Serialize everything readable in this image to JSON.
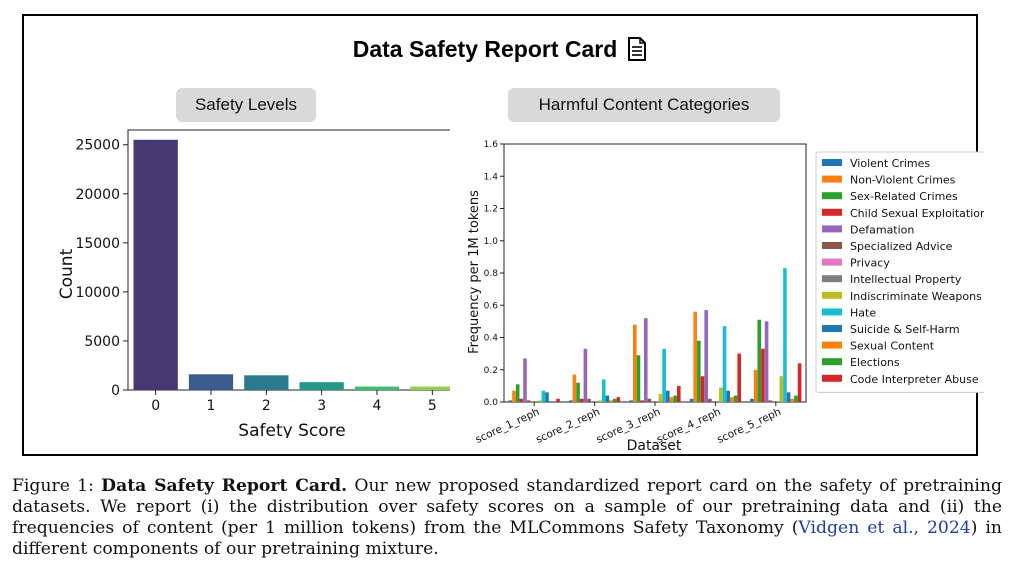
{
  "card": {
    "title": "Data Safety Report Card",
    "icon": "document-icon"
  },
  "left_panel": {
    "label": "Safety Levels"
  },
  "right_panel": {
    "label": "Harmful Content Categories"
  },
  "chart_data": [
    {
      "type": "bar",
      "title": "Safety Levels",
      "xlabel": "Safety Score",
      "ylabel": "Count",
      "categories": [
        "0",
        "1",
        "2",
        "3",
        "4",
        "5"
      ],
      "values": [
        25500,
        1600,
        1500,
        800,
        350,
        350
      ],
      "ylim": [
        0,
        26500
      ],
      "yticks": [
        "0",
        "5000",
        "10000",
        "15000",
        "20000",
        "25000"
      ],
      "colors": [
        "#463872",
        "#3a5b8c",
        "#2b7a8c",
        "#25988a",
        "#3fbc73",
        "#8fd14f"
      ]
    },
    {
      "type": "bar",
      "title": "Harmful Content Categories",
      "xlabel": "Dataset",
      "ylabel": "Frequency per 1M tokens",
      "categories": [
        "score_1_reph",
        "score_2_reph",
        "score_3_reph",
        "score_4_reph",
        "score_5_reph"
      ],
      "ylim": [
        0,
        1.6
      ],
      "yticks": [
        "0.0",
        "0.2",
        "0.4",
        "0.6",
        "0.8",
        "1.0",
        "1.2",
        "1.4",
        "1.6"
      ],
      "legend_position": "right",
      "series": [
        {
          "name": "Violent Crimes",
          "color": "#1f77b4",
          "values": [
            0.01,
            0.01,
            0.01,
            0.02,
            0.02
          ]
        },
        {
          "name": "Non-Violent Crimes",
          "color": "#ff7f0e",
          "values": [
            0.07,
            0.17,
            0.48,
            0.56,
            0.2
          ]
        },
        {
          "name": "Sex-Related Crimes",
          "color": "#2ca02c",
          "values": [
            0.11,
            0.12,
            0.29,
            0.38,
            0.51
          ]
        },
        {
          "name": "Child Sexual Exploitation",
          "color": "#d62728",
          "values": [
            0.02,
            0.02,
            0.01,
            0.16,
            0.33
          ]
        },
        {
          "name": "Defamation",
          "color": "#9467bd",
          "values": [
            0.27,
            0.33,
            0.52,
            0.57,
            0.5
          ]
        },
        {
          "name": "Specialized Advice",
          "color": "#8c564b",
          "values": [
            0.01,
            0.02,
            0.02,
            0.02,
            0.01
          ]
        },
        {
          "name": "Privacy",
          "color": "#e377c2",
          "values": [
            0.0,
            0.0,
            0.0,
            0.0,
            0.0
          ]
        },
        {
          "name": "Intellectual Property",
          "color": "#7f7f7f",
          "values": [
            0.0,
            0.0,
            0.0,
            0.0,
            0.0
          ]
        },
        {
          "name": "Indiscriminate Weapons",
          "color": "#bcbd22",
          "values": [
            0.01,
            0.01,
            0.05,
            0.09,
            0.16
          ]
        },
        {
          "name": "Hate",
          "color": "#17becf",
          "values": [
            0.07,
            0.14,
            0.33,
            0.47,
            0.83
          ]
        },
        {
          "name": "Suicide & Self-Harm",
          "color": "#1f77b4",
          "values": [
            0.06,
            0.04,
            0.07,
            0.07,
            0.06
          ]
        },
        {
          "name": "Sexual Content",
          "color": "#ff7f0e",
          "values": [
            0.0,
            0.01,
            0.03,
            0.03,
            0.02
          ]
        },
        {
          "name": "Elections",
          "color": "#2ca02c",
          "values": [
            0.0,
            0.02,
            0.04,
            0.04,
            0.04
          ]
        },
        {
          "name": "Code Interpreter Abuse",
          "color": "#d62728",
          "values": [
            0.02,
            0.03,
            0.1,
            0.3,
            0.24
          ]
        }
      ]
    }
  ],
  "caption": {
    "label": "Figure 1:",
    "bold": "Data Safety Report Card.",
    "text1": "Our new proposed standardized report card on the safety of pretraining datasets.  We report (i) the distribution over safety scores on a sample of our pretraining data and (ii) the frequencies of content (per 1 million tokens) from the MLCommons Safety Taxonomy (",
    "cite": "Vidgen et al., 2024",
    "text2": ") in different components of our pretraining mixture."
  }
}
